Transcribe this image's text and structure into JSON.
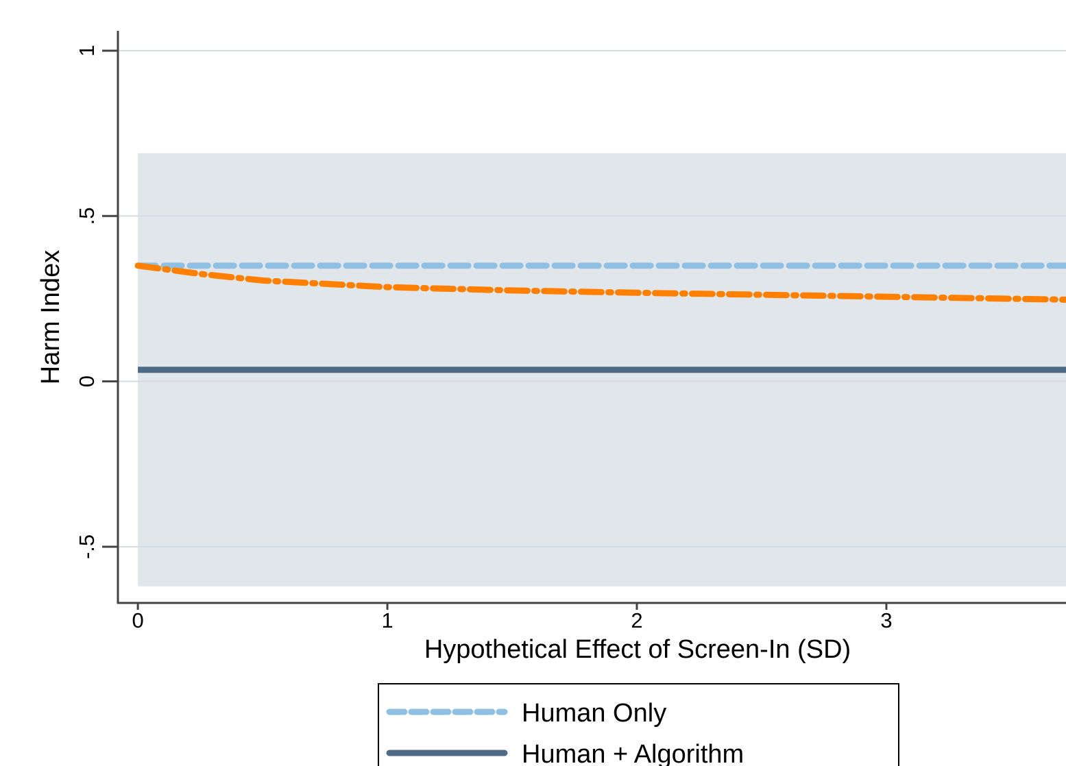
{
  "chart_data": {
    "type": "line",
    "xlabel": "Hypothetical Effect of Screen-In (SD)",
    "ylabel": "Harm Index",
    "xlim": [
      -0.08,
      3.72
    ],
    "ylim": [
      -0.67,
      1.06
    ],
    "x_ticks": [
      {
        "value": 0,
        "label": "0"
      },
      {
        "value": 1,
        "label": "1"
      },
      {
        "value": 2,
        "label": "2"
      },
      {
        "value": 3,
        "label": "3"
      }
    ],
    "y_ticks": [
      {
        "value": -0.5,
        "label": "-.5"
      },
      {
        "value": 0,
        "label": "0"
      },
      {
        "value": 0.5,
        "label": ".5"
      },
      {
        "value": 1,
        "label": "1"
      }
    ],
    "grid": true,
    "shaded_region": {
      "x": [
        0,
        3.72
      ],
      "y": [
        -0.62,
        0.69
      ],
      "color": "#e1e6ea"
    },
    "series": [
      {
        "name": "Human Only",
        "style": "dashed",
        "color": "#8fc0e3",
        "x": [
          0,
          0.5,
          1,
          1.5,
          2,
          2.5,
          3,
          3.5,
          3.72
        ],
        "y": [
          0.35,
          0.35,
          0.35,
          0.35,
          0.35,
          0.35,
          0.35,
          0.35,
          0.35
        ]
      },
      {
        "name": "Human + Algorithm",
        "style": "solid",
        "color": "#4e6a86",
        "x": [
          0,
          0.5,
          1,
          1.5,
          2,
          2.5,
          3,
          3.5,
          3.72
        ],
        "y": [
          0.035,
          0.035,
          0.035,
          0.035,
          0.035,
          0.035,
          0.035,
          0.035,
          0.035
        ]
      },
      {
        "name": "",
        "style": "dash-dot",
        "color": "#ff8000",
        "x": [
          0,
          0.25,
          0.5,
          1,
          1.5,
          2,
          2.5,
          3,
          3.5,
          3.72
        ],
        "y": [
          0.35,
          0.325,
          0.305,
          0.285,
          0.275,
          0.268,
          0.262,
          0.256,
          0.25,
          0.247
        ]
      }
    ],
    "legend": {
      "position": "bottom",
      "entries": [
        {
          "label": "Human Only",
          "style": "dashed",
          "color": "#8fc0e3"
        },
        {
          "label": "Human + Algorithm",
          "style": "solid",
          "color": "#4e6a86"
        }
      ]
    }
  }
}
